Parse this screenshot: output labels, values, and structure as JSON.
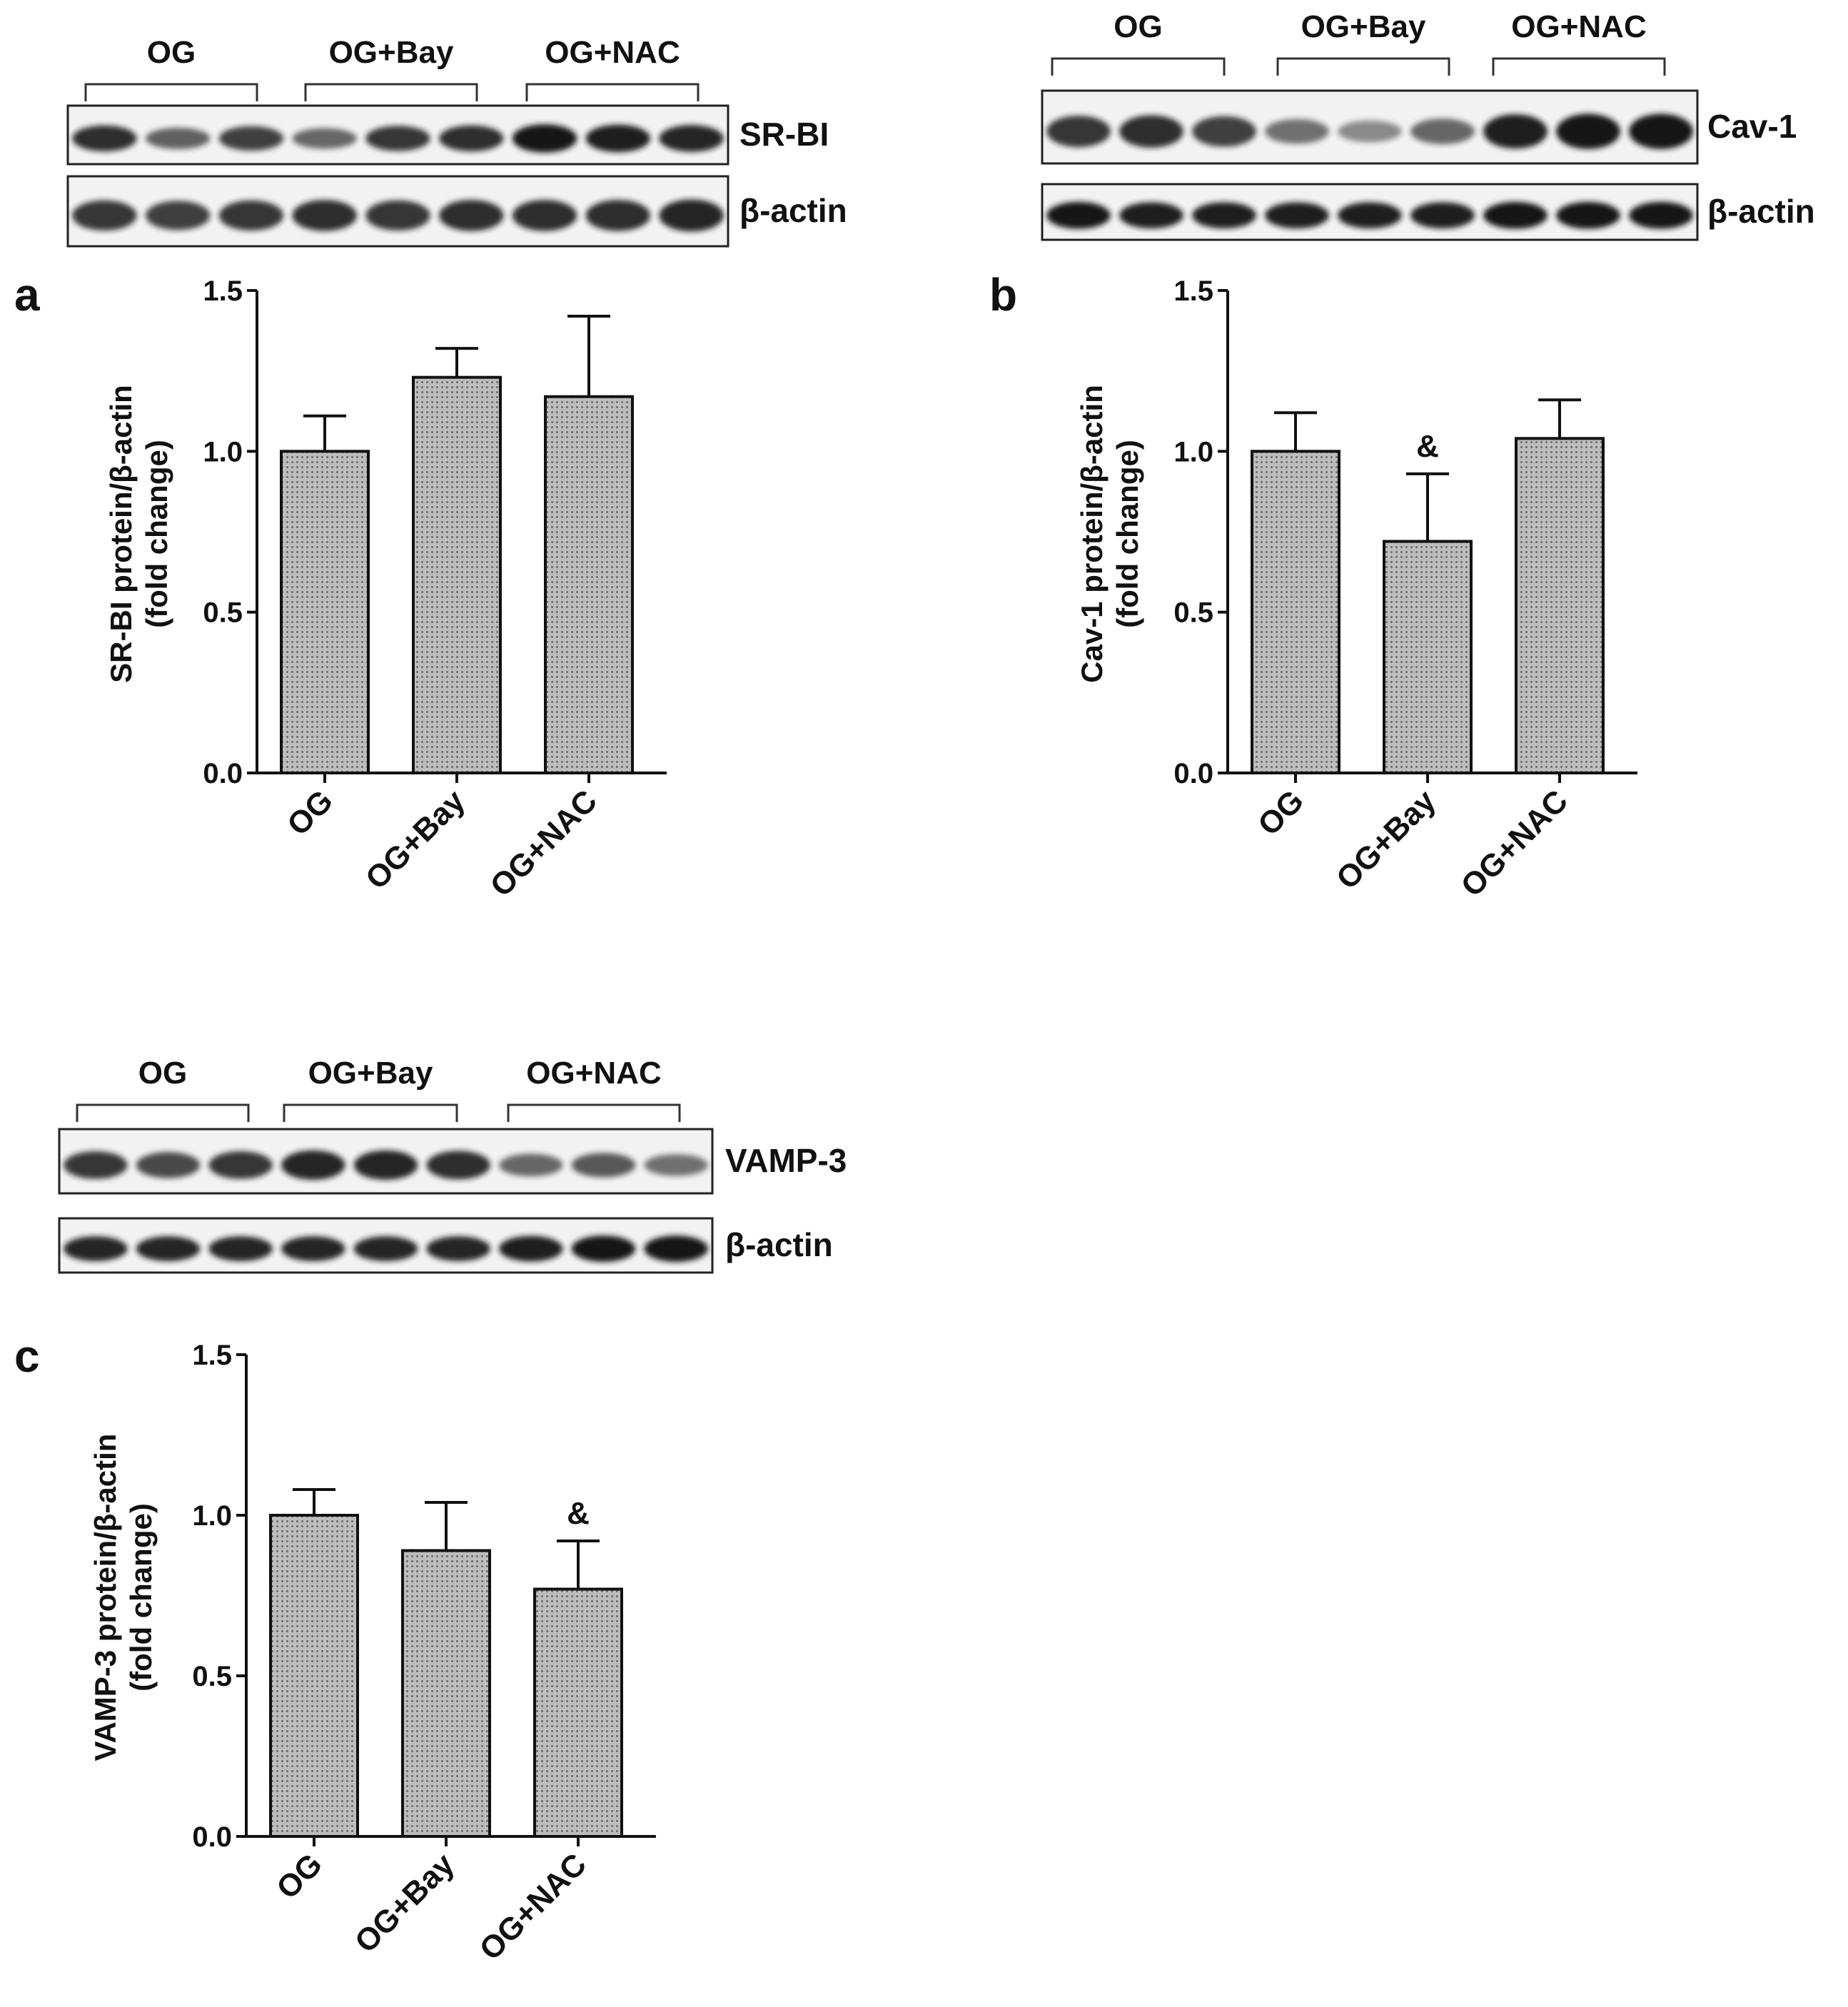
{
  "patterns": {
    "bar_fill": "#bdbdbd",
    "bar_dot": "#6b6b6b",
    "band_color": "#141414"
  },
  "panels": [
    {
      "id": "a",
      "letter": "a",
      "blot": {
        "groups": [
          "OG",
          "OG+Bay",
          "OG+NAC"
        ],
        "bands": [
          {
            "label": "SR-BI",
            "intensity": [
              0.85,
              0.55,
              0.75,
              0.5,
              0.8,
              0.85,
              1.0,
              0.95,
              0.9
            ]
          },
          {
            "label": "β-actin",
            "intensity": [
              0.8,
              0.75,
              0.8,
              0.85,
              0.8,
              0.85,
              0.85,
              0.85,
              0.9
            ]
          }
        ]
      },
      "chart_data": {
        "type": "bar",
        "categories": [
          "OG",
          "OG+Bay",
          "OG+NAC"
        ],
        "values": [
          1.0,
          1.23,
          1.17
        ],
        "errors": [
          0.11,
          0.09,
          0.25
        ],
        "significance": [
          "",
          "",
          ""
        ],
        "ylabel_line1": "SR-BI protein/β-actin",
        "ylabel_line2": "(fold change)",
        "ylim": [
          0,
          1.5
        ],
        "yticks": [
          "0.0",
          "0.5",
          "1.0",
          "1.5"
        ]
      }
    },
    {
      "id": "b",
      "letter": "b",
      "blot": {
        "groups": [
          "OG",
          "OG+Bay",
          "OG+NAC"
        ],
        "bands": [
          {
            "label": "Cav-1",
            "intensity": [
              0.8,
              0.85,
              0.75,
              0.45,
              0.3,
              0.5,
              0.95,
              1.0,
              1.0
            ]
          },
          {
            "label": "β-actin",
            "intensity": [
              1.0,
              0.95,
              0.95,
              0.95,
              0.95,
              0.95,
              1.0,
              1.0,
              1.0
            ]
          }
        ]
      },
      "chart_data": {
        "type": "bar",
        "categories": [
          "OG",
          "OG+Bay",
          "OG+NAC"
        ],
        "values": [
          1.0,
          0.72,
          1.04
        ],
        "errors": [
          0.12,
          0.21,
          0.12
        ],
        "significance": [
          "",
          "&",
          ""
        ],
        "ylabel_line1": "Cav-1 protein/β-actin",
        "ylabel_line2": "(fold change)",
        "ylim": [
          0,
          1.5
        ],
        "yticks": [
          "0.0",
          "0.5",
          "1.0",
          "1.5"
        ]
      }
    },
    {
      "id": "c",
      "letter": "c",
      "blot": {
        "groups": [
          "OG",
          "OG+Bay",
          "OG+NAC"
        ],
        "bands": [
          {
            "label": "VAMP-3",
            "intensity": [
              0.8,
              0.7,
              0.8,
              0.9,
              0.9,
              0.85,
              0.5,
              0.6,
              0.45
            ]
          },
          {
            "label": "β-actin",
            "intensity": [
              0.9,
              0.9,
              0.9,
              0.9,
              0.9,
              0.9,
              0.95,
              1.0,
              1.0
            ]
          }
        ]
      },
      "chart_data": {
        "type": "bar",
        "categories": [
          "OG",
          "OG+Bay",
          "OG+NAC"
        ],
        "values": [
          1.0,
          0.89,
          0.77
        ],
        "errors": [
          0.08,
          0.15,
          0.15
        ],
        "significance": [
          "",
          "",
          "&"
        ],
        "ylabel_line1": "VAMP-3 protein/β-actin",
        "ylabel_line2": "(fold change)",
        "ylim": [
          0,
          1.5
        ],
        "yticks": [
          "0.0",
          "0.5",
          "1.0",
          "1.5"
        ]
      }
    }
  ]
}
